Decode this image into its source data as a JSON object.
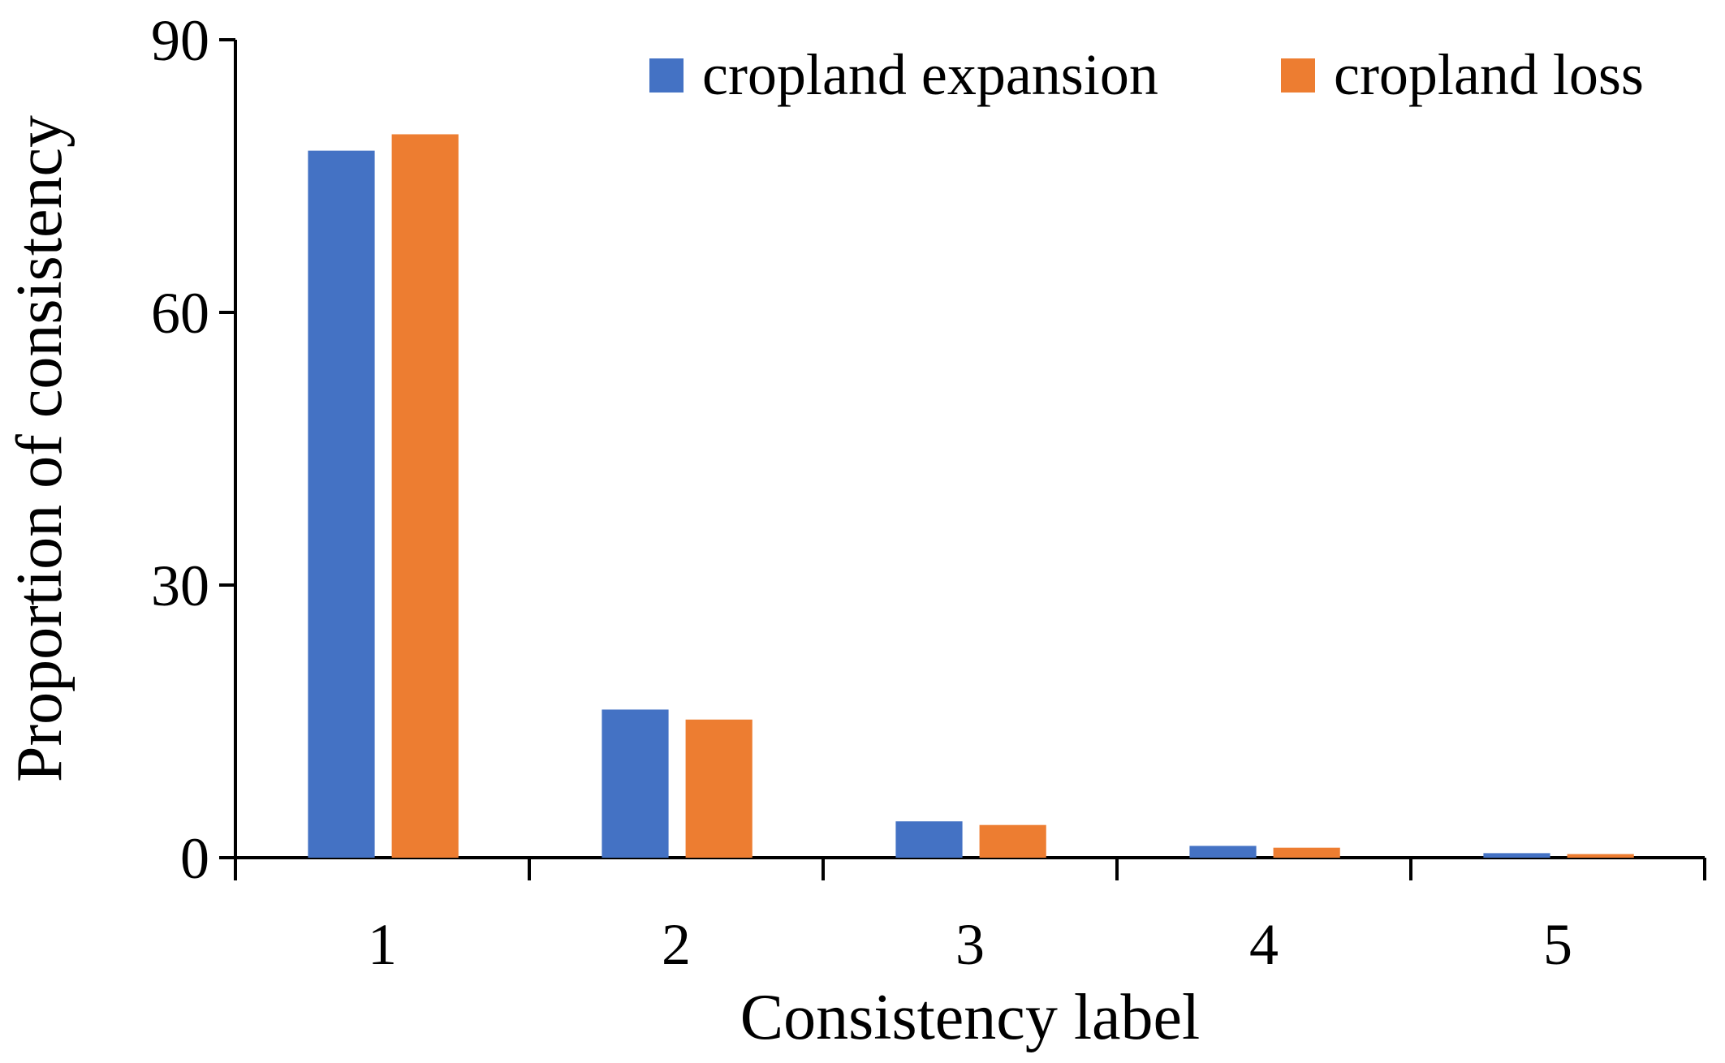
{
  "chart_data": {
    "type": "bar",
    "x_label": "Consistency label",
    "y_label": "Proportion of consistency",
    "categories": [
      "1",
      "2",
      "3",
      "4",
      "5"
    ],
    "series": [
      {
        "name": "cropland expansion",
        "color": "#4472c4",
        "values": [
          77.8,
          16.3,
          4.0,
          1.3,
          0.5
        ]
      },
      {
        "name": "cropland loss",
        "color": "#ed7d31",
        "values": [
          79.6,
          15.2,
          3.6,
          1.1,
          0.4
        ]
      }
    ],
    "ylim": [
      0,
      90
    ],
    "yticks": [
      0,
      30,
      60,
      90
    ],
    "grid": false,
    "legend": "top-right"
  }
}
